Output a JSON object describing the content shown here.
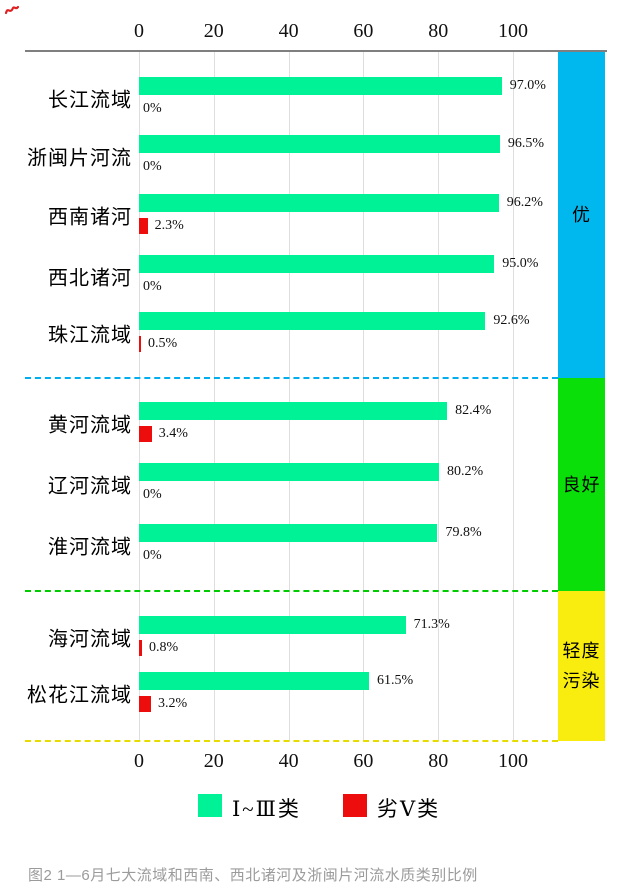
{
  "caption": "图2  1—6月七大流域和西南、西北诸河及浙闽片河流水质类别比例",
  "colors": {
    "good_bar": "#00f296",
    "bad_bar": "#ec0d0c",
    "band_excellent": "#00b8ee",
    "band_good": "#0adf0a",
    "band_light_pollution": "#f8ed0f",
    "axis_line": "#7f7f7f",
    "gridline": "#dedede",
    "caption_text": "#9b9b9b",
    "corner_mark": "#e02020"
  },
  "chart_data": {
    "type": "bar",
    "orientation": "horizontal",
    "title": "",
    "xlabel": "",
    "ylabel": "",
    "xlim": [
      0,
      100
    ],
    "axis_ticks": [
      0,
      20,
      40,
      60,
      80,
      100
    ],
    "grid": true,
    "categories": [
      "长江流域",
      "浙闽片河流",
      "西南诸河",
      "西北诸河",
      "珠江流域",
      "黄河流域",
      "辽河流域",
      "淮河流域",
      "海河流域",
      "松花江流域"
    ],
    "series": [
      {
        "name": "Ⅰ~Ⅲ类",
        "values": [
          97.0,
          96.5,
          96.2,
          95.0,
          92.6,
          82.4,
          80.2,
          79.8,
          71.3,
          61.5
        ],
        "labels": [
          "97.0%",
          "96.5%",
          "96.2%",
          "95.0%",
          "92.6%",
          "82.4%",
          "80.2%",
          "79.8%",
          "71.3%",
          "61.5%"
        ]
      },
      {
        "name": "劣Ⅴ类",
        "values": [
          0,
          0,
          2.3,
          0,
          0.5,
          3.4,
          0,
          0,
          0.8,
          3.2
        ],
        "labels": [
          "0%",
          "0%",
          "2.3%",
          "0%",
          "0.5%",
          "3.4%",
          "0%",
          "0%",
          "0.8%",
          "3.2%"
        ]
      }
    ],
    "bands": [
      {
        "label": "优",
        "lines": [
          "优"
        ],
        "rows": [
          0,
          4
        ]
      },
      {
        "label": "良好",
        "lines": [
          "良好"
        ],
        "rows": [
          5,
          7
        ]
      },
      {
        "label": "轻度污染",
        "lines": [
          "轻度",
          "污染"
        ],
        "rows": [
          8,
          9
        ]
      }
    ],
    "legend": [
      {
        "label": "Ⅰ~Ⅲ类",
        "swatch": "good"
      },
      {
        "label": "劣Ⅴ类",
        "swatch": "bad"
      }
    ],
    "legend_position": "bottom"
  }
}
